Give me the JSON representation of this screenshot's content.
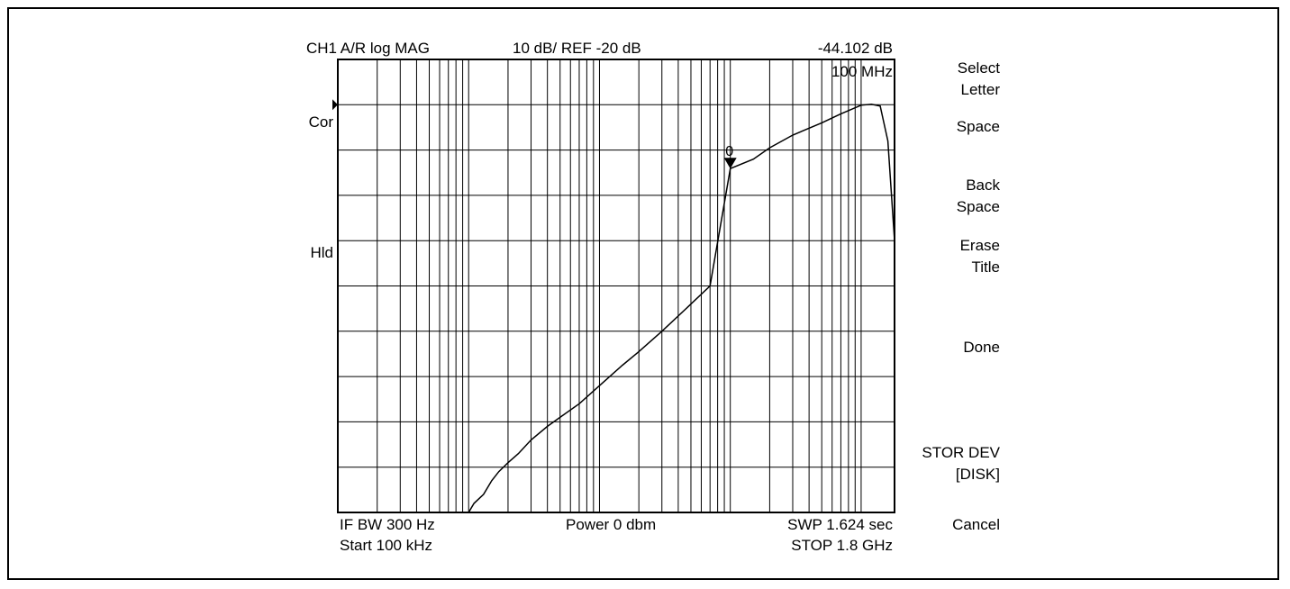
{
  "header": {
    "channel": "CH1 A/R log MAG",
    "scale": "10 dB/ REF -20 dB",
    "marker_value": "-44.102 dB",
    "marker_freq": "100 MHz"
  },
  "side_labels": {
    "cor": "Cor",
    "hld": "Hld"
  },
  "footer": {
    "if_bw": "IF BW 300 Hz",
    "start": "Start 100 kHz",
    "power": "Power 0 dbm",
    "sweep": "SWP 1.624 sec",
    "stop": "STOP 1.8 GHz"
  },
  "softkeys": {
    "select_letter": [
      "Select",
      "Letter"
    ],
    "space": "Space",
    "back_space": [
      "Back",
      "Space"
    ],
    "erase_title": [
      "Erase",
      "Title"
    ],
    "done": "Done",
    "stor_dev": [
      "STOR DEV",
      "[DISK]"
    ],
    "cancel": "Cancel"
  },
  "chart_data": {
    "type": "line",
    "x_scale": "log",
    "x_unit": "Hz",
    "xlim": [
      100000,
      1800000000
    ],
    "y_unit": "dB",
    "ylim": [
      -120,
      -20
    ],
    "reference_level": -20,
    "scale_per_div": 10,
    "grid": true,
    "marker": {
      "label": "0",
      "x": 100000000,
      "y": -44.102
    },
    "series": [
      {
        "x": [
          1000000,
          1100000,
          1300000,
          1500000,
          1700000,
          2000000,
          2400000,
          3000000,
          4000000,
          5000000,
          7000000,
          10000000,
          15000000,
          20000000,
          30000000,
          50000000,
          70000000,
          100000000,
          150000000,
          200000000,
          300000000,
          500000000,
          700000000,
          1000000000,
          1200000000,
          1400000000,
          1600000000,
          1800000000
        ],
        "values": [
          -120,
          -118,
          -116,
          -113,
          -111,
          -109,
          -107,
          -104,
          -101,
          -99,
          -96,
          -92,
          -87.5,
          -84.5,
          -80,
          -74,
          -70,
          -44.1,
          -42,
          -39.5,
          -36.7,
          -34,
          -32,
          -30.1,
          -29.9,
          -30.3,
          -38,
          -60
        ]
      }
    ]
  }
}
